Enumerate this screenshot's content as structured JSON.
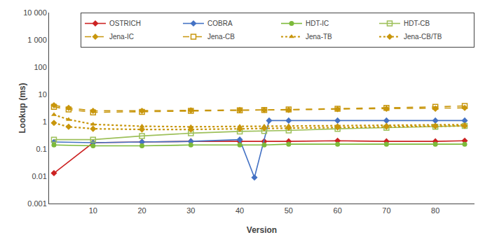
{
  "chart_data": {
    "type": "line",
    "xlabel": "Version",
    "ylabel": "Lookup (ms)",
    "log": "y",
    "grid": false,
    "legend": "upper right",
    "xlim": [
      1,
      88
    ],
    "xticks": [
      10,
      20,
      30,
      40,
      50,
      60,
      70,
      80
    ],
    "ylim": [
      0.001,
      10000
    ],
    "yticks": [
      0.001,
      0.01,
      0.1,
      1,
      10,
      100,
      {
        "value": 1000,
        "label": "1 000"
      },
      {
        "value": 10000,
        "label": "10 000"
      }
    ],
    "series": [
      {
        "name": "OSTRICH",
        "color": "#cc2222",
        "marker": "diamond",
        "line_style": "solid",
        "x": [
          2,
          10,
          20,
          30,
          40,
          45,
          50,
          60,
          70,
          80,
          86
        ],
        "values": [
          0.013,
          0.17,
          0.18,
          0.19,
          0.19,
          0.19,
          0.19,
          0.2,
          0.19,
          0.19,
          0.2
        ]
      },
      {
        "name": "COBRA",
        "color": "#4472c4",
        "marker": "diamond",
        "line_style": "solid",
        "x": [
          2,
          10,
          20,
          30,
          40,
          43,
          46,
          50,
          60,
          70,
          80,
          86
        ],
        "values": [
          0.18,
          0.17,
          0.18,
          0.19,
          0.22,
          0.009,
          1.1,
          1.1,
          1.1,
          1.1,
          1.1,
          1.1
        ]
      },
      {
        "name": "HDT-IC",
        "color": "#7cba3a",
        "marker": "circle",
        "line_style": "solid",
        "x": [
          2,
          10,
          20,
          30,
          40,
          45,
          50,
          60,
          70,
          80,
          86
        ],
        "values": [
          0.14,
          0.13,
          0.13,
          0.14,
          0.14,
          0.14,
          0.15,
          0.15,
          0.15,
          0.15,
          0.15
        ]
      },
      {
        "name": "HDT-CB",
        "color": "#9dc05a",
        "marker": "square-open",
        "line_style": "solid",
        "x": [
          2,
          10,
          20,
          30,
          40,
          45,
          50,
          60,
          70,
          80,
          86
        ],
        "values": [
          0.22,
          0.22,
          0.3,
          0.38,
          0.44,
          0.46,
          0.48,
          0.55,
          0.6,
          0.65,
          0.7
        ]
      },
      {
        "name": "Jena-IC",
        "color": "#c8960c",
        "marker": "diamond",
        "line_style": "dash",
        "x": [
          2,
          5,
          10,
          20,
          30,
          40,
          45,
          50,
          60,
          70,
          80,
          86
        ],
        "values": [
          4.0,
          3.2,
          2.5,
          2.5,
          2.6,
          2.7,
          2.7,
          2.7,
          2.9,
          3.0,
          3.0,
          3.2
        ]
      },
      {
        "name": "Jena-CB",
        "color": "#c8960c",
        "marker": "square-open",
        "line_style": "dash",
        "x": [
          2,
          5,
          10,
          20,
          30,
          40,
          45,
          50,
          60,
          70,
          80,
          86
        ],
        "values": [
          3.5,
          2.8,
          2.2,
          2.3,
          2.5,
          2.6,
          2.7,
          2.8,
          3.0,
          3.2,
          3.5,
          3.8
        ]
      },
      {
        "name": "Jena-TB",
        "color": "#c8960c",
        "marker": "triangle-up",
        "line_style": "dot",
        "x": [
          2,
          5,
          10,
          20,
          30,
          40,
          45,
          50,
          60,
          70,
          80,
          86
        ],
        "values": [
          1.8,
          1.2,
          0.8,
          0.68,
          0.65,
          0.67,
          0.68,
          0.7,
          0.72,
          0.75,
          0.75,
          0.78
        ]
      },
      {
        "name": "Jena-CB/TB",
        "color": "#c8960c",
        "marker": "diamond",
        "line_style": "dot",
        "x": [
          2,
          5,
          10,
          20,
          30,
          40,
          45,
          50,
          60,
          70,
          80,
          86
        ],
        "values": [
          0.9,
          0.65,
          0.55,
          0.52,
          0.52,
          0.55,
          0.58,
          0.6,
          0.62,
          0.65,
          0.68,
          0.7
        ]
      }
    ]
  }
}
